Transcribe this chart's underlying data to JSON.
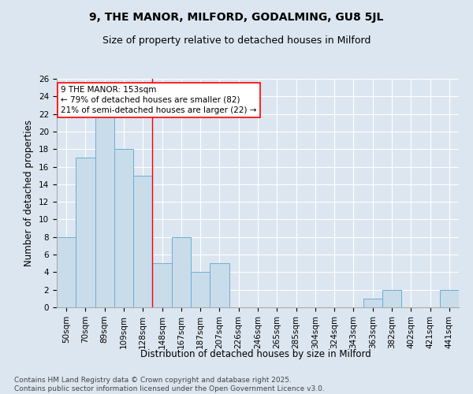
{
  "title": "9, THE MANOR, MILFORD, GODALMING, GU8 5JL",
  "subtitle": "Size of property relative to detached houses in Milford",
  "xlabel": "Distribution of detached houses by size in Milford",
  "ylabel": "Number of detached properties",
  "categories": [
    "50sqm",
    "70sqm",
    "89sqm",
    "109sqm",
    "128sqm",
    "148sqm",
    "167sqm",
    "187sqm",
    "207sqm",
    "226sqm",
    "246sqm",
    "265sqm",
    "285sqm",
    "304sqm",
    "324sqm",
    "343sqm",
    "363sqm",
    "382sqm",
    "402sqm",
    "421sqm",
    "441sqm"
  ],
  "values": [
    8,
    17,
    22,
    18,
    15,
    5,
    8,
    4,
    5,
    0,
    0,
    0,
    0,
    0,
    0,
    0,
    1,
    2,
    0,
    0,
    2
  ],
  "bar_color": "#c9dcea",
  "bar_edge_color": "#6aaed6",
  "marker_line_index": 5,
  "annotation_title": "9 THE MANOR: 153sqm",
  "annotation_line1": "← 79% of detached houses are smaller (82)",
  "annotation_line2": "21% of semi-detached houses are larger (22) →",
  "ylim": [
    0,
    26
  ],
  "yticks": [
    0,
    2,
    4,
    6,
    8,
    10,
    12,
    14,
    16,
    18,
    20,
    22,
    24,
    26
  ],
  "background_color": "#dce6f0",
  "plot_bg_color": "#dce6f0",
  "footer_line1": "Contains HM Land Registry data © Crown copyright and database right 2025.",
  "footer_line2": "Contains public sector information licensed under the Open Government Licence v3.0.",
  "title_fontsize": 10,
  "subtitle_fontsize": 9,
  "axis_label_fontsize": 8.5,
  "tick_fontsize": 7.5,
  "annotation_fontsize": 7.5,
  "footer_fontsize": 6.5
}
